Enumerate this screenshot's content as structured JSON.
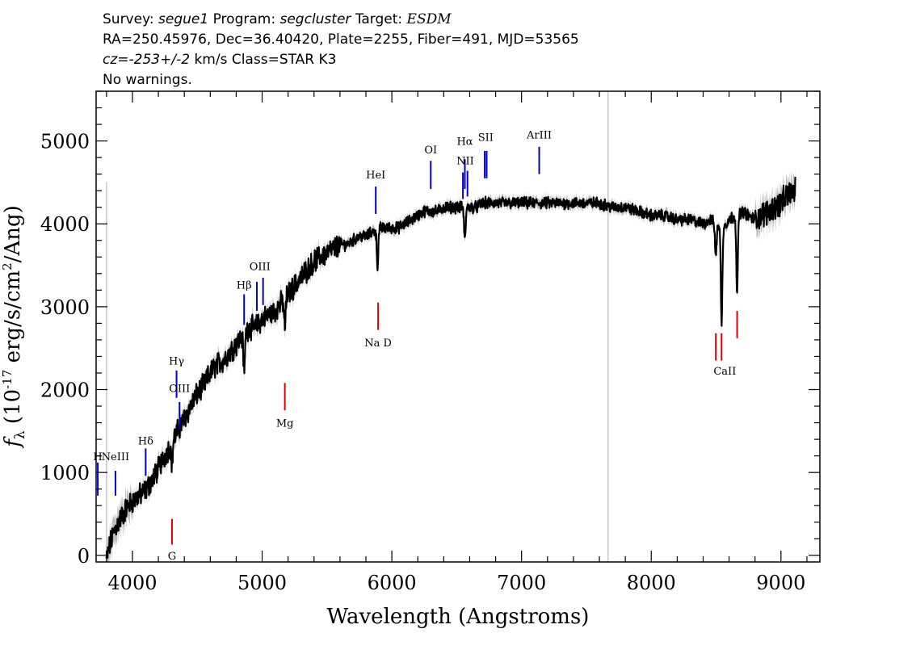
{
  "header": {
    "line1": {
      "survey_label": "Survey:",
      "survey": "segue1",
      "program_label": "Program:",
      "program": "segcluster",
      "target_label": "Target:",
      "target": "ESDM"
    },
    "line2": "RA=250.45976, Dec=36.40420, Plate=2255, Fiber=491, MJD=53565",
    "line3": {
      "cz": "cz=-253+/-2",
      "unit": "km/s",
      "class": "Class=STAR K3"
    },
    "line4": "No warnings."
  },
  "chart_data": {
    "type": "line",
    "xlabel": "Wavelength (Angstroms)",
    "ylabel": "f_λ (10^-17 erg/s/cm²/Ang)",
    "xlim": [
      3720,
      9300
    ],
    "ylim": [
      -80,
      5600
    ],
    "xticks": [
      4000,
      5000,
      6000,
      7000,
      8000,
      9000
    ],
    "yticks": [
      0,
      1000,
      2000,
      3000,
      4000,
      5000
    ],
    "grid": false,
    "series": [
      {
        "role": "flux",
        "color": "#000000",
        "x": [
          3800,
          3830,
          3860,
          3900,
          3950,
          4000,
          4050,
          4100,
          4150,
          4200,
          4250,
          4300,
          4350,
          4400,
          4450,
          4500,
          4550,
          4600,
          4650,
          4700,
          4750,
          4800,
          4850,
          4900,
          4950,
          5000,
          5050,
          5100,
          5150,
          5200,
          5250,
          5300,
          5350,
          5400,
          5450,
          5500,
          5550,
          5600,
          5650,
          5700,
          5750,
          5800,
          5850,
          5900,
          5950,
          6000,
          6050,
          6100,
          6150,
          6200,
          6250,
          6300,
          6350,
          6400,
          6450,
          6500,
          6550,
          6600,
          6650,
          6700,
          6750,
          6800,
          6900,
          7000,
          7100,
          7200,
          7300,
          7400,
          7500,
          7600,
          7700,
          7800,
          7900,
          8000,
          8100,
          8200,
          8300,
          8400,
          8450,
          8500,
          8550,
          8600,
          8650,
          8700,
          8800,
          8900,
          8950,
          9000,
          9050,
          9100
        ],
        "y": [
          -50,
          150,
          300,
          420,
          560,
          650,
          720,
          780,
          900,
          1050,
          1200,
          1350,
          1500,
          1650,
          1800,
          1950,
          2050,
          2200,
          2300,
          2350,
          2450,
          2550,
          2650,
          2750,
          2750,
          2850,
          2900,
          2950,
          3050,
          3150,
          3250,
          3350,
          3450,
          3550,
          3600,
          3650,
          3700,
          3750,
          3750,
          3800,
          3850,
          3850,
          3900,
          3950,
          3950,
          3950,
          3950,
          4000,
          4050,
          4100,
          4150,
          4150,
          4150,
          4200,
          4200,
          4200,
          4200,
          4200,
          4200,
          4250,
          4250,
          4250,
          4250,
          4250,
          4250,
          4250,
          4250,
          4250,
          4250,
          4250,
          4200,
          4200,
          4150,
          4100,
          4100,
          4050,
          4050,
          4000,
          4050,
          4000,
          3950,
          4050,
          4100,
          4150,
          4050,
          4150,
          4200,
          4250,
          4350,
          4400
        ]
      }
    ],
    "absorption_features": [
      {
        "wavelength": 4305,
        "depth": 250
      },
      {
        "wavelength": 4861,
        "depth": 450
      },
      {
        "wavelength": 5175,
        "depth": 350
      },
      {
        "wavelength": 5890,
        "depth": 450
      },
      {
        "wavelength": 6563,
        "depth": 400
      },
      {
        "wavelength": 8498,
        "depth": 400
      },
      {
        "wavelength": 8542,
        "depth": 1150
      },
      {
        "wavelength": 8662,
        "depth": 950
      }
    ],
    "sky_line": {
      "wavelength": 7667,
      "color": "#c8c8c8"
    },
    "error_color": "#bbbbbb",
    "emission_lines": {
      "color": "#0000cc",
      "items": [
        {
          "label": "H",
          "x": 3733,
          "y0": 720,
          "y1": 1120,
          "label_y": 1150
        },
        {
          "label": "NeIII",
          "x": 3869,
          "y0": 720,
          "y1": 1020,
          "label_y": 1150
        },
        {
          "label": "Hδ",
          "x": 4102,
          "y0": 960,
          "y1": 1290,
          "label_y": 1340
        },
        {
          "label": "Hγ",
          "x": 4340,
          "y0": 1900,
          "y1": 2230,
          "label_y": 2300
        },
        {
          "label": "OIII",
          "x": 4363,
          "y0": 1520,
          "y1": 1850,
          "label_y": 1970
        },
        {
          "label": "Hβ",
          "x": 4861,
          "y0": 2780,
          "y1": 3150,
          "label_y": 3220
        },
        {
          "label": "OIII",
          "x": 4959,
          "y0": 2950,
          "y1": 3300,
          "label_y": 3440
        },
        {
          "label": "OIII",
          "x": 5007,
          "y0": 3020,
          "y1": 3350,
          "label_y": 3440
        },
        {
          "label": "HeI",
          "x": 5876,
          "y0": 4120,
          "y1": 4450,
          "label_y": 4550
        },
        {
          "label": "OI",
          "x": 6300,
          "y0": 4420,
          "y1": 4760,
          "label_y": 4850
        },
        {
          "label": "NII",
          "x": 6548,
          "y0": 4300,
          "y1": 4620,
          "label_y": 4720
        },
        {
          "label": "Hα",
          "x": 6563,
          "y0": 4420,
          "y1": 4780,
          "label_y": 4950
        },
        {
          "label": "NII",
          "x": 6583,
          "y0": 4330,
          "y1": 4640,
          "label_y": 4720
        },
        {
          "label": "SII",
          "x": 6716,
          "y0": 4550,
          "y1": 4880,
          "label_y": 5000
        },
        {
          "label": "SII",
          "x": 6731,
          "y0": 4550,
          "y1": 4880,
          "label_y": 5000
        },
        {
          "label": "ArIII",
          "x": 7136,
          "y0": 4600,
          "y1": 4930,
          "label_y": 5030
        }
      ]
    },
    "absorption_markers": {
      "color": "#dd0000",
      "items": [
        {
          "label": "G",
          "x": 4305,
          "y0": 130,
          "y1": 440,
          "label_y": -50
        },
        {
          "label": "Mg",
          "x": 5175,
          "y0": 1750,
          "y1": 2080,
          "label_y": 1550
        },
        {
          "label": "Na D",
          "x": 5894,
          "y0": 2720,
          "y1": 3050,
          "label_y": 2520
        },
        {
          "label": "CaII",
          "x": 8498,
          "y0": 2350,
          "y1": 2680,
          "label_y": 2180
        },
        {
          "label": "CaII",
          "x": 8542,
          "y0": 2350,
          "y1": 2680,
          "label_y": 2180
        },
        {
          "label": "CaII",
          "x": 8662,
          "y0": 2620,
          "y1": 2950,
          "label_y": 2180
        }
      ]
    }
  }
}
